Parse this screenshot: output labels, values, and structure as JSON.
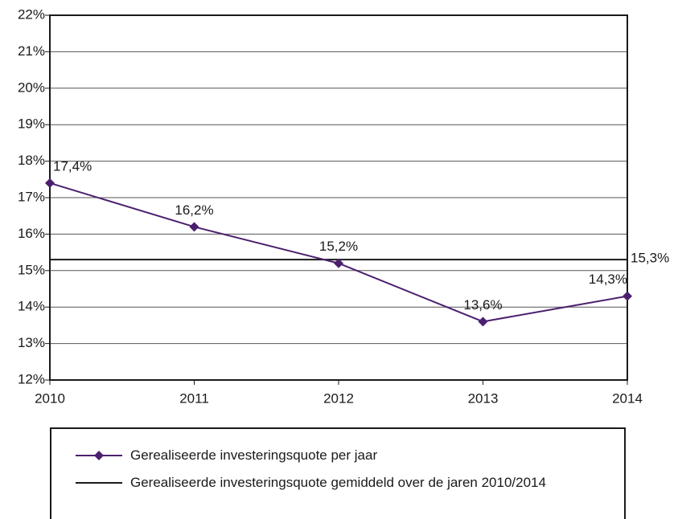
{
  "chart_data": {
    "type": "line",
    "xlim": [
      2010,
      2014
    ],
    "xticks": [
      2010,
      2011,
      2012,
      2013,
      2014
    ],
    "ylim": [
      12,
      22
    ],
    "yticks": [
      {
        "value": 12,
        "label": "12%"
      },
      {
        "value": 13,
        "label": "13%"
      },
      {
        "value": 14,
        "label": "14%"
      },
      {
        "value": 15,
        "label": "15%"
      },
      {
        "value": 16,
        "label": "16%"
      },
      {
        "value": 17,
        "label": "17%"
      },
      {
        "value": 18,
        "label": "18%"
      },
      {
        "value": 19,
        "label": "19%"
      },
      {
        "value": 20,
        "label": "20%"
      },
      {
        "value": 21,
        "label": "21%"
      },
      {
        "value": 22,
        "label": "22%"
      }
    ],
    "grid": true,
    "series": [
      {
        "name": "Gerealiseerde investeringsquote per jaar",
        "color": "#4b1f6e",
        "x": [
          2010,
          2011,
          2012,
          2013,
          2014
        ],
        "values": [
          17.4,
          16.2,
          15.2,
          13.6,
          14.3
        ],
        "value_labels": [
          "17,4%",
          "16,2%",
          "15,2%",
          "13,6%",
          "14,3%"
        ]
      }
    ],
    "average": {
      "name": "Gerealiseerde investeringsquote gemiddeld over de jaren 2010/2014",
      "color": "#1a1a1a",
      "value": 15.3,
      "label": "15,3%"
    }
  }
}
